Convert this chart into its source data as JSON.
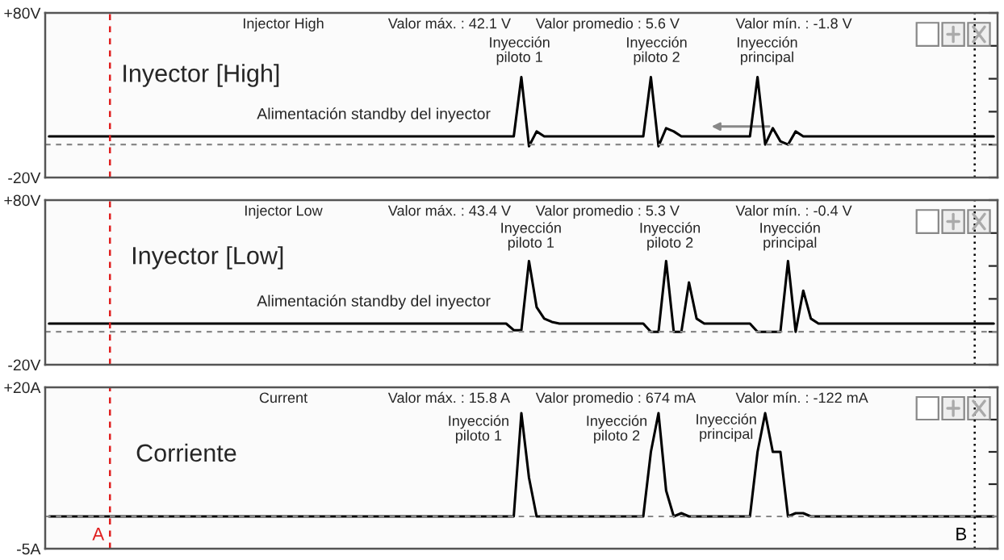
{
  "chart_data": [
    {
      "type": "line",
      "title": "Injector High",
      "categories": [
        null,
        null,
        null,
        null,
        null,
        null,
        null,
        null,
        null,
        null,
        null,
        null,
        null,
        null,
        null,
        null,
        null,
        null,
        null,
        null,
        null,
        null,
        null,
        null,
        null,
        null,
        null,
        null,
        null,
        null,
        null,
        null,
        null,
        null,
        null,
        null,
        null,
        null,
        null,
        null,
        null,
        null,
        null,
        null,
        null,
        null,
        null,
        null,
        null,
        null,
        null,
        null,
        null,
        null,
        null,
        null,
        null,
        null,
        null,
        null,
        null,
        null,
        null,
        null,
        null,
        null,
        null,
        null,
        null,
        null,
        null,
        null,
        null,
        null,
        null,
        null,
        null,
        null,
        null,
        null,
        null,
        null,
        null,
        null,
        null,
        null,
        null,
        null,
        null,
        null,
        null,
        null,
        null,
        null,
        null,
        null,
        null,
        null,
        null,
        null,
        null,
        null,
        null,
        null,
        null,
        null,
        null,
        null,
        null,
        null,
        null,
        null,
        null,
        null,
        null,
        null,
        null,
        null,
        null,
        null,
        null,
        null,
        null,
        null,
        null
      ],
      "series": [
        {
          "color": "#000000",
          "values": [
            5,
            5,
            5,
            5,
            5,
            5,
            5,
            5,
            5,
            5,
            5,
            5,
            5,
            5,
            5,
            5,
            5,
            5,
            5,
            5,
            5,
            5,
            5,
            5,
            5,
            5,
            5,
            5,
            5,
            5,
            5,
            5,
            5,
            5,
            5,
            5,
            5,
            5,
            5,
            5,
            5,
            5,
            5,
            5,
            5,
            5,
            5,
            5,
            5,
            5,
            5,
            5,
            5,
            5,
            5,
            5,
            5,
            5,
            5,
            5,
            5,
            5,
            41,
            -1,
            8,
            5,
            5,
            5,
            5,
            5,
            5,
            5,
            5,
            5,
            5,
            5,
            5,
            5,
            5,
            41,
            -1,
            10,
            8,
            5,
            5,
            5,
            5,
            5,
            5,
            5,
            5,
            5,
            5,
            41,
            0,
            10,
            2,
            0,
            8,
            5,
            5,
            5,
            5,
            5,
            5,
            5,
            5,
            5,
            5,
            5,
            5,
            5,
            5,
            5,
            5,
            5,
            5,
            5,
            5,
            5,
            5,
            5,
            5,
            5,
            5
          ]
        }
      ],
      "ylim": [
        -20,
        80
      ],
      "yticks": [
        {
          "value": 80,
          "label": "+80V"
        },
        {
          "value": 60,
          "label": null
        },
        {
          "value": 40,
          "label": null
        },
        {
          "value": 20,
          "label": null
        },
        {
          "value": 0,
          "label": null
        },
        {
          "value": -20,
          "label": "-20V"
        }
      ],
      "ref_lines": [
        {
          "axis": "y",
          "value": 0,
          "color": "#888888",
          "line_style": "dashed"
        }
      ],
      "annotations": [
        "Valor máx. : 42.1 V",
        "Valor promedio : 5.6 V",
        "Valor mín. : -1.8 V",
        "Inyector [High]",
        "Inyección\npiloto 1",
        "Inyección\npiloto 2",
        "Inyección\nprincipal",
        "Alimentación standby del inyector"
      ]
    },
    {
      "type": "line",
      "title": "Injector Low",
      "categories": [
        null,
        null,
        null,
        null,
        null,
        null,
        null,
        null,
        null,
        null,
        null,
        null,
        null,
        null,
        null,
        null,
        null,
        null,
        null,
        null,
        null,
        null,
        null,
        null,
        null,
        null,
        null,
        null,
        null,
        null,
        null,
        null,
        null,
        null,
        null,
        null,
        null,
        null,
        null,
        null,
        null,
        null,
        null,
        null,
        null,
        null,
        null,
        null,
        null,
        null,
        null,
        null,
        null,
        null,
        null,
        null,
        null,
        null,
        null,
        null,
        null,
        null,
        null,
        null,
        null,
        null,
        null,
        null,
        null,
        null,
        null,
        null,
        null,
        null,
        null,
        null,
        null,
        null,
        null,
        null,
        null,
        null,
        null,
        null,
        null,
        null,
        null,
        null,
        null,
        null,
        null,
        null,
        null,
        null,
        null,
        null,
        null,
        null,
        null,
        null,
        null,
        null,
        null,
        null,
        null,
        null,
        null,
        null,
        null,
        null,
        null,
        null,
        null,
        null,
        null,
        null,
        null,
        null,
        null,
        null,
        null,
        null,
        null,
        null,
        null
      ],
      "series": [
        {
          "color": "#000000",
          "values": [
            5,
            5,
            5,
            5,
            5,
            5,
            5,
            5,
            5,
            5,
            5,
            5,
            5,
            5,
            5,
            5,
            5,
            5,
            5,
            5,
            5,
            5,
            5,
            5,
            5,
            5,
            5,
            5,
            5,
            5,
            5,
            5,
            5,
            5,
            5,
            5,
            5,
            5,
            5,
            5,
            5,
            5,
            5,
            5,
            5,
            5,
            5,
            5,
            5,
            5,
            5,
            5,
            5,
            5,
            5,
            5,
            5,
            5,
            5,
            5,
            5,
            1,
            1,
            43,
            15,
            8,
            6,
            5,
            5,
            5,
            5,
            5,
            5,
            5,
            5,
            5,
            5,
            5,
            5,
            0,
            0,
            43,
            0,
            0,
            30,
            8,
            5,
            5,
            5,
            5,
            5,
            5,
            5,
            0,
            0,
            0,
            0,
            43,
            0,
            25,
            8,
            5,
            5,
            5,
            5,
            5,
            5,
            5,
            5,
            5,
            5,
            5,
            5,
            5,
            5,
            5,
            5,
            5,
            5,
            5,
            5,
            5,
            5,
            5,
            5
          ]
        }
      ],
      "ylim": [
        -20,
        80
      ],
      "yticks": [
        {
          "value": 80,
          "label": "+80V"
        },
        {
          "value": 60,
          "label": null
        },
        {
          "value": 40,
          "label": null
        },
        {
          "value": 20,
          "label": null
        },
        {
          "value": 0,
          "label": null
        },
        {
          "value": -20,
          "label": "-20V"
        }
      ],
      "ref_lines": [
        {
          "axis": "y",
          "value": 0,
          "color": "#888888",
          "line_style": "dashed"
        }
      ],
      "annotations": [
        "Valor máx. : 43.4 V",
        "Valor promedio : 5.3 V",
        "Valor mín. : -0.4 V",
        "Inyector [Low]",
        "Inyección\npiloto 1",
        "Inyección\npiloto 2",
        "Inyección\nprincipal",
        "Alimentación standby del inyector"
      ]
    },
    {
      "type": "line",
      "title": "Current",
      "categories": [
        null,
        null,
        null,
        null,
        null,
        null,
        null,
        null,
        null,
        null,
        null,
        null,
        null,
        null,
        null,
        null,
        null,
        null,
        null,
        null,
        null,
        null,
        null,
        null,
        null,
        null,
        null,
        null,
        null,
        null,
        null,
        null,
        null,
        null,
        null,
        null,
        null,
        null,
        null,
        null,
        null,
        null,
        null,
        null,
        null,
        null,
        null,
        null,
        null,
        null,
        null,
        null,
        null,
        null,
        null,
        null,
        null,
        null,
        null,
        null,
        null,
        null,
        null,
        null,
        null,
        null,
        null,
        null,
        null,
        null,
        null,
        null,
        null,
        null,
        null,
        null,
        null,
        null,
        null,
        null,
        null,
        null,
        null,
        null,
        null,
        null,
        null,
        null,
        null,
        null,
        null,
        null,
        null,
        null,
        null,
        null,
        null,
        null,
        null,
        null,
        null,
        null,
        null,
        null,
        null,
        null,
        null,
        null,
        null,
        null,
        null,
        null,
        null,
        null,
        null,
        null,
        null,
        null,
        null,
        null,
        null,
        null,
        null,
        null,
        null
      ],
      "series": [
        {
          "color": "#000000",
          "values": [
            0,
            0,
            0,
            0,
            0,
            0,
            0,
            0,
            0,
            0,
            0,
            0,
            0,
            0,
            0,
            0,
            0,
            0,
            0,
            0,
            0,
            0,
            0,
            0,
            0,
            0,
            0,
            0,
            0,
            0,
            0,
            0,
            0,
            0,
            0,
            0,
            0,
            0,
            0,
            0,
            0,
            0,
            0,
            0,
            0,
            0,
            0,
            0,
            0,
            0,
            0,
            0,
            0,
            0,
            0,
            0,
            0,
            0,
            0,
            0,
            0,
            0,
            16,
            6,
            0,
            0,
            0,
            0,
            0,
            0,
            0,
            0,
            0,
            0,
            0,
            0,
            0,
            0,
            0,
            10,
            16,
            4,
            0,
            0.5,
            0,
            0,
            0,
            0,
            0,
            0,
            0,
            0,
            0,
            10,
            16,
            10,
            10,
            0,
            0.5,
            0.5,
            0,
            0,
            0,
            0,
            0,
            0,
            0,
            0,
            0,
            0,
            0,
            0,
            0,
            0,
            0,
            0,
            0,
            0,
            0,
            0,
            0,
            0,
            0,
            0,
            0
          ]
        }
      ],
      "ylim": [
        -5,
        20
      ],
      "yticks": [
        {
          "value": 20,
          "label": "+20A"
        },
        {
          "value": 15,
          "label": null
        },
        {
          "value": 10,
          "label": null
        },
        {
          "value": 5,
          "label": null
        },
        {
          "value": 0,
          "label": null
        },
        {
          "value": -5,
          "label": "-5A"
        }
      ],
      "ref_lines": [
        {
          "axis": "y",
          "value": 0,
          "color": "#888888",
          "line_style": "dashed"
        }
      ],
      "annotations": [
        "Valor máx. : 15.8 A",
        "Valor promedio : 674 mA",
        "Valor mín. : -122 mA",
        "Corriente",
        "Inyección\npiloto 1",
        "Inyección\npiloto 2",
        "Inyección\nprincipal",
        "A",
        "B"
      ]
    }
  ]
}
